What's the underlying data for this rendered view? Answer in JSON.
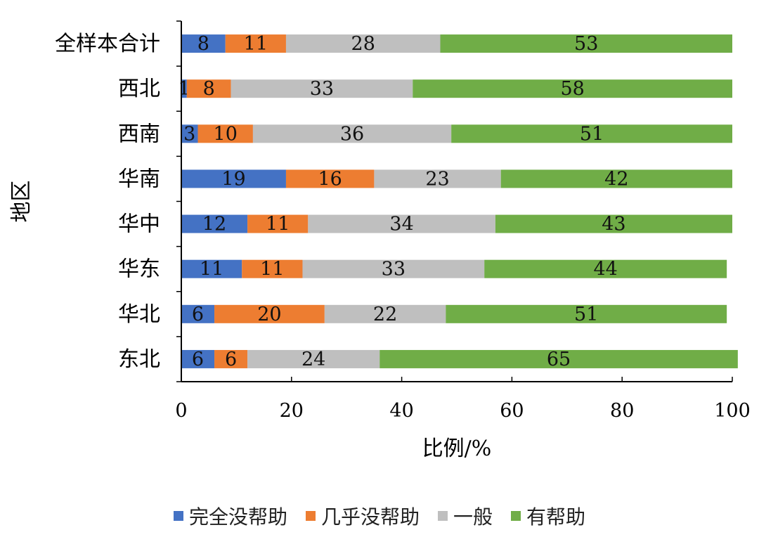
{
  "chart_data": {
    "type": "bar",
    "orientation": "horizontal",
    "stacked": true,
    "title": "",
    "xlabel": "比例/%",
    "ylabel": "地区",
    "xlim": [
      0,
      100
    ],
    "xticks": [
      0,
      20,
      40,
      60,
      80,
      100
    ],
    "categories": [
      "全样本合计",
      "西北",
      "西南",
      "华南",
      "华中",
      "华东",
      "华北",
      "东北"
    ],
    "series": [
      {
        "name": "完全没帮助",
        "color": "#4472C4",
        "values": [
          8,
          1,
          3,
          19,
          12,
          11,
          6,
          6
        ]
      },
      {
        "name": "几乎没帮助",
        "color": "#ED7D31",
        "values": [
          11,
          8,
          10,
          16,
          11,
          11,
          20,
          6
        ]
      },
      {
        "name": "一般",
        "color": "#BFBFBF",
        "values": [
          28,
          33,
          36,
          23,
          34,
          33,
          22,
          24
        ]
      },
      {
        "name": "有帮助",
        "color": "#70AD47",
        "values": [
          53,
          58,
          51,
          42,
          43,
          44,
          51,
          65
        ]
      }
    ],
    "legend_position": "bottom",
    "grid": false
  }
}
